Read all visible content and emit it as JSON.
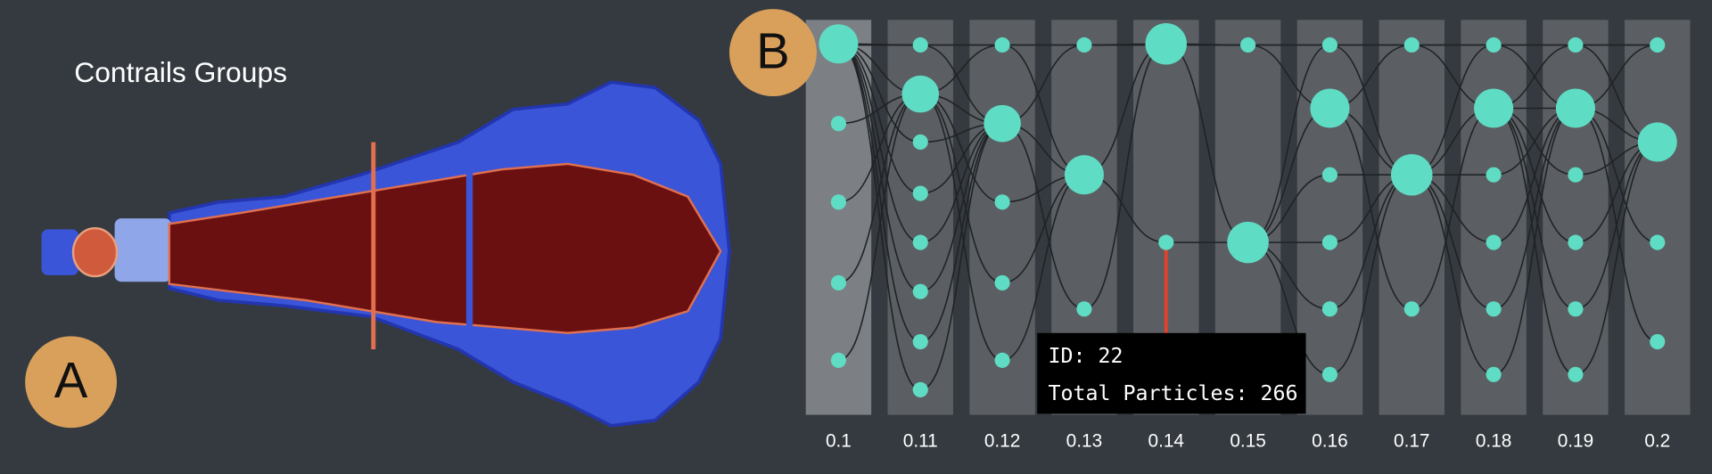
{
  "panel_a": {
    "label": "A",
    "title": "Contrails Groups"
  },
  "panel_b": {
    "label": "B",
    "columns": [
      "0.1",
      "0.11",
      "0.12",
      "0.13",
      "0.14",
      "0.15",
      "0.16",
      "0.17",
      "0.18",
      "0.19",
      "0.2"
    ],
    "tooltip": {
      "id": "ID: 22",
      "total": "Total Particles: 266"
    }
  }
}
